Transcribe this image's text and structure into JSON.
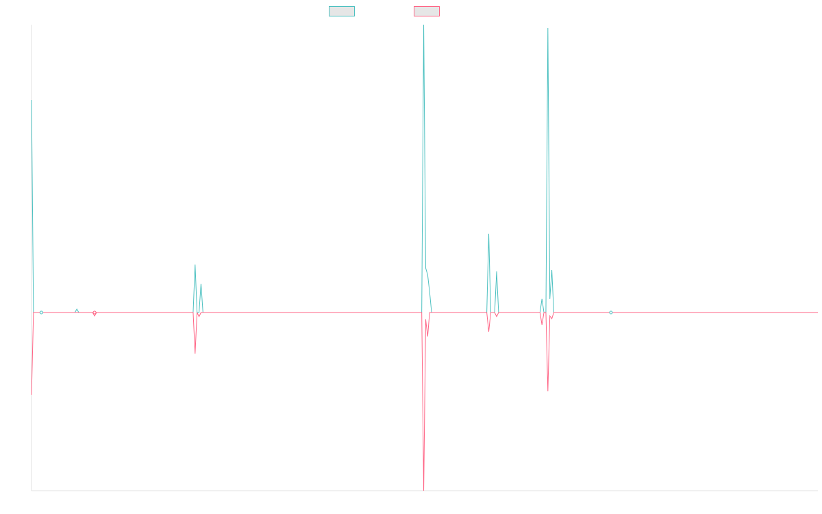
{
  "chart_data": {
    "type": "line",
    "title": "",
    "xlabel": "",
    "ylabel": "",
    "grid": false,
    "legend_placement": "top-center",
    "x": [
      0,
      1,
      2,
      3,
      4,
      5,
      6,
      7,
      8,
      9,
      10,
      11,
      12,
      13,
      14,
      15,
      16,
      17,
      18,
      19,
      20,
      21,
      22,
      23,
      24,
      25,
      26,
      27,
      28,
      29,
      30,
      31,
      32,
      33,
      34,
      35,
      36,
      37,
      38,
      39,
      40,
      41,
      42,
      43,
      44,
      45,
      46,
      47,
      48,
      49,
      50,
      51,
      52,
      53,
      54,
      55,
      56,
      57,
      58,
      59,
      60,
      61,
      62,
      63,
      64,
      65,
      66,
      67,
      68,
      69,
      70,
      71,
      72,
      73,
      74,
      75,
      76,
      77,
      78,
      79,
      80,
      81,
      82,
      83,
      84,
      85,
      86,
      87,
      88,
      89,
      90,
      91,
      92,
      93,
      94,
      95,
      96,
      97,
      98,
      99,
      100,
      101,
      102,
      103,
      104,
      105,
      106,
      107,
      108,
      109,
      110,
      111,
      112,
      113,
      114,
      115,
      116,
      117,
      118,
      119,
      120,
      121,
      122,
      123,
      124,
      125,
      126,
      127,
      128,
      129,
      130,
      131,
      132,
      133,
      134,
      135,
      136,
      137,
      138,
      139,
      140,
      141,
      142,
      143,
      144,
      145,
      146,
      147,
      148,
      149,
      150,
      151,
      152,
      153,
      154,
      155,
      156,
      157,
      158,
      159,
      160,
      161,
      162,
      163,
      164,
      165,
      166,
      167,
      168,
      169,
      170,
      171,
      172,
      173,
      174,
      175,
      176,
      177,
      178,
      179,
      180,
      181,
      182,
      183,
      184,
      185,
      186,
      187,
      188,
      189,
      190,
      191,
      192,
      193,
      194,
      195,
      196,
      197,
      198,
      199,
      200,
      201,
      202,
      203,
      204,
      205,
      206,
      207,
      208,
      209,
      210,
      211,
      212,
      213,
      214,
      215,
      216,
      217,
      218,
      219,
      220,
      221,
      222,
      223,
      224,
      225,
      226,
      227,
      228,
      229,
      230,
      231,
      232,
      233,
      234,
      235,
      236,
      237,
      238,
      239,
      240,
      241,
      242,
      243,
      244,
      245,
      246,
      247,
      248,
      249,
      250,
      251,
      252,
      253,
      254,
      255,
      256,
      257,
      258,
      259,
      260,
      261,
      262,
      263,
      264,
      265,
      266,
      267,
      268,
      269,
      270,
      271,
      272,
      273,
      274,
      275,
      276,
      277,
      278,
      279,
      280,
      281,
      282,
      283,
      284,
      285,
      286,
      287,
      288,
      289,
      290,
      291,
      292,
      293,
      294,
      295,
      296,
      297,
      298,
      299,
      300,
      301,
      302,
      303,
      304,
      305,
      306,
      307,
      308,
      309,
      310,
      311,
      312,
      313,
      314,
      315,
      316,
      317,
      318,
      319,
      320,
      321,
      322,
      323,
      324,
      325,
      326,
      327,
      328,
      329,
      330,
      331,
      332,
      333,
      334,
      335,
      336,
      337,
      338,
      339,
      340,
      341,
      342,
      343,
      344,
      345,
      346,
      347,
      348,
      349,
      350,
      351,
      352,
      353,
      354,
      355,
      356,
      357,
      358,
      359,
      360,
      361,
      362,
      363,
      364,
      365,
      366,
      367,
      368,
      369,
      370,
      371,
      372,
      373,
      374,
      375,
      376,
      377,
      378,
      379,
      380,
      381,
      382,
      383,
      384,
      385,
      386,
      387,
      388,
      389,
      390,
      391,
      392,
      393,
      394,
      395,
      396,
      397,
      398,
      399
    ],
    "xlim": [
      0,
      399
    ],
    "ylim": [
      -2.6,
      4.2
    ],
    "series": [
      {
        "color": "#4bc0c0",
        "spikes": [
          [
            0,
            3.1
          ],
          [
            1,
            0
          ],
          [
            2,
            0
          ],
          [
            5,
            0.01
          ],
          [
            23,
            0.05
          ],
          [
            24,
            0
          ],
          [
            32,
            0
          ],
          [
            83,
            0.7
          ],
          [
            84,
            0
          ],
          [
            86,
            0.42
          ],
          [
            87,
            0
          ],
          [
            198,
            0
          ],
          [
            199,
            4.2
          ],
          [
            200,
            0.65
          ],
          [
            201,
            0.55
          ],
          [
            202,
            0.3
          ],
          [
            203,
            0
          ],
          [
            230,
            0
          ],
          [
            232,
            1.15
          ],
          [
            233,
            0
          ],
          [
            236,
            0.6
          ],
          [
            237,
            0
          ],
          [
            258,
            0
          ],
          [
            259,
            0.2
          ],
          [
            260,
            0
          ],
          [
            261,
            0
          ],
          [
            262,
            4.15
          ],
          [
            263,
            0.2
          ],
          [
            264,
            0.62
          ],
          [
            265,
            0
          ],
          [
            294,
            0
          ]
        ],
        "values_note": ""
      },
      {
        "color": "#ff6384",
        "spikes": [
          [
            0,
            -1.2
          ],
          [
            1,
            0
          ],
          [
            2,
            0
          ],
          [
            32,
            -0.05
          ],
          [
            33,
            0
          ],
          [
            82,
            0
          ],
          [
            83,
            -0.6
          ],
          [
            84,
            0
          ],
          [
            85,
            -0.06
          ],
          [
            86,
            0
          ],
          [
            198,
            0
          ],
          [
            199,
            -2.6
          ],
          [
            200,
            -0.1
          ],
          [
            201,
            -0.35
          ],
          [
            202,
            0
          ],
          [
            230,
            0
          ],
          [
            232,
            -0.28
          ],
          [
            233,
            0
          ],
          [
            236,
            -0.06
          ],
          [
            237,
            0
          ],
          [
            258,
            0
          ],
          [
            259,
            -0.18
          ],
          [
            260,
            0
          ],
          [
            261,
            0
          ],
          [
            262,
            -1.15
          ],
          [
            263,
            -0.05
          ],
          [
            264,
            -0.09
          ],
          [
            265,
            0
          ],
          [
            294,
            0
          ]
        ]
      }
    ],
    "legend": [
      {
        "color_fill": "#e6e6e6",
        "color_border": "#4bc0c0"
      },
      {
        "color_fill": "#e6e6e6",
        "color_border": "#ff6384"
      }
    ]
  }
}
